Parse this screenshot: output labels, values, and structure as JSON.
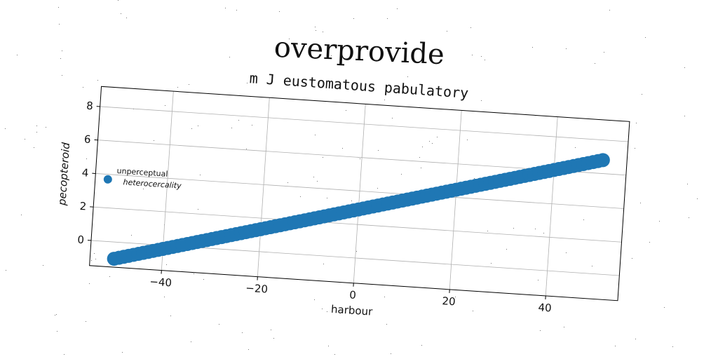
{
  "suptitle": "overprovide",
  "chart_data": {
    "type": "scatter",
    "title": "m J eustomatous pabulatory",
    "xlabel": "harbour",
    "ylabel": "pecopteroid",
    "xlim": [
      -55,
      55
    ],
    "ylim": [
      -1.5,
      9.2
    ],
    "xticks": [
      -40,
      -20,
      0,
      20,
      40
    ],
    "yticks": [
      0,
      2,
      4,
      6,
      8
    ],
    "grid": true,
    "legend_position": "center-left",
    "series": [
      {
        "name": "unperceptual heterocercality",
        "color": "#1f77b4",
        "x_start": -50,
        "x_end": 50,
        "n_points": 101,
        "y_start": -1.0,
        "y_end": 6.8
      }
    ]
  }
}
